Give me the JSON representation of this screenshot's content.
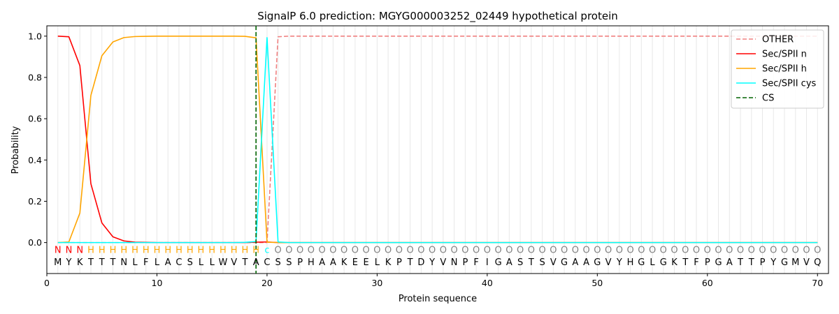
{
  "chart_data": {
    "type": "line",
    "title": "SignalP 6.0 prediction: MGYG000003252_02449 hypothetical protein",
    "xlabel": "Protein sequence",
    "ylabel": "Probability",
    "xlim": [
      0,
      71
    ],
    "ylim": [
      -0.15,
      1.05
    ],
    "x_ticks": [
      0,
      10,
      20,
      30,
      40,
      50,
      60,
      70
    ],
    "y_ticks": [
      0.0,
      0.2,
      0.4,
      0.6,
      0.8,
      1.0
    ],
    "x_tick_labels": [
      "0",
      "10",
      "20",
      "30",
      "40",
      "50",
      "60",
      "70"
    ],
    "y_tick_labels": [
      "0.0",
      "0.2",
      "0.4",
      "0.6",
      "0.8",
      "1.0"
    ],
    "grid": "vertical lines at each residue",
    "legend_position": "top-right",
    "sequence": [
      "M",
      "Y",
      "K",
      "T",
      "T",
      "T",
      "N",
      "L",
      "F",
      "L",
      "A",
      "C",
      "S",
      "L",
      "L",
      "W",
      "V",
      "T",
      "A",
      "C",
      "S",
      "S",
      "P",
      "H",
      "A",
      "A",
      "K",
      "E",
      "E",
      "L",
      "K",
      "P",
      "T",
      "D",
      "Y",
      "V",
      "N",
      "P",
      "F",
      "I",
      "G",
      "A",
      "S",
      "T",
      "S",
      "V",
      "G",
      "A",
      "A",
      "G",
      "V",
      "Y",
      "H",
      "G",
      "L",
      "G",
      "K",
      "T",
      "F",
      "P",
      "G",
      "A",
      "T",
      "T",
      "P",
      "Y",
      "G",
      "M",
      "V",
      "Q"
    ],
    "annotation": [
      "N",
      "N",
      "N",
      "H",
      "H",
      "H",
      "H",
      "H",
      "H",
      "H",
      "H",
      "H",
      "H",
      "H",
      "H",
      "H",
      "H",
      "H",
      "H",
      "c",
      "O",
      "O",
      "O",
      "O",
      "O",
      "O",
      "O",
      "O",
      "O",
      "O",
      "O",
      "O",
      "O",
      "O",
      "O",
      "O",
      "O",
      "O",
      "O",
      "O",
      "O",
      "O",
      "O",
      "O",
      "O",
      "O",
      "O",
      "O",
      "O",
      "O",
      "O",
      "O",
      "O",
      "O",
      "O",
      "O",
      "O",
      "O",
      "O",
      "O",
      "O",
      "O",
      "O",
      "O",
      "O",
      "O",
      "O",
      "O",
      "O",
      "O"
    ],
    "annotation_colors": {
      "N": "#ff0000",
      "H": "#ffa500",
      "c": "#00ffff",
      "O": "#808080"
    },
    "series": [
      {
        "name": "OTHER",
        "color": "#f08080",
        "style": "dashed",
        "x": [
          1,
          2,
          3,
          4,
          5,
          6,
          7,
          8,
          9,
          10,
          11,
          12,
          13,
          14,
          15,
          16,
          17,
          18,
          19,
          20,
          21,
          22,
          23,
          24,
          25,
          26,
          27,
          28,
          29,
          30,
          31,
          32,
          33,
          34,
          35,
          36,
          37,
          38,
          39,
          40,
          41,
          42,
          43,
          44,
          45,
          46,
          47,
          48,
          49,
          50,
          51,
          52,
          53,
          54,
          55,
          56,
          57,
          58,
          59,
          60,
          61,
          62,
          63,
          64,
          65,
          66,
          67,
          68,
          69,
          70
        ],
        "values": [
          0,
          0,
          0,
          0,
          0,
          0,
          0,
          0,
          0,
          0,
          0,
          0,
          0,
          0,
          0,
          0,
          0,
          0,
          0,
          0,
          0.997,
          1,
          1,
          1,
          1,
          1,
          1,
          1,
          1,
          1,
          1,
          1,
          1,
          1,
          1,
          1,
          1,
          1,
          1,
          1,
          1,
          1,
          1,
          1,
          1,
          1,
          1,
          1,
          1,
          1,
          1,
          1,
          1,
          1,
          1,
          1,
          1,
          1,
          1,
          1,
          1,
          1,
          1,
          1,
          1,
          1,
          1,
          1,
          1,
          1
        ]
      },
      {
        "name": "Sec/SPII n",
        "color": "#ff0000",
        "style": "solid",
        "x": [
          1,
          2,
          3,
          4,
          5,
          6,
          7,
          8,
          9,
          10,
          11,
          12,
          13,
          14,
          15,
          16,
          17,
          18,
          19,
          20,
          21,
          22,
          23,
          24,
          25,
          26,
          27,
          28,
          29,
          30,
          31,
          32,
          33,
          34,
          35,
          36,
          37,
          38,
          39,
          40,
          41,
          42,
          43,
          44,
          45,
          46,
          47,
          48,
          49,
          50,
          51,
          52,
          53,
          54,
          55,
          56,
          57,
          58,
          59,
          60,
          61,
          62,
          63,
          64,
          65,
          66,
          67,
          68,
          69,
          70
        ],
        "values": [
          1.0,
          0.997,
          0.857,
          0.285,
          0.095,
          0.028,
          0.008,
          0.002,
          0.001,
          0,
          0,
          0,
          0,
          0,
          0,
          0,
          0,
          0,
          0.002,
          0.003,
          0,
          0,
          0,
          0,
          0,
          0,
          0,
          0,
          0,
          0,
          0,
          0,
          0,
          0,
          0,
          0,
          0,
          0,
          0,
          0,
          0,
          0,
          0,
          0,
          0,
          0,
          0,
          0,
          0,
          0,
          0,
          0,
          0,
          0,
          0,
          0,
          0,
          0,
          0,
          0,
          0,
          0,
          0,
          0,
          0,
          0,
          0,
          0,
          0,
          0
        ]
      },
      {
        "name": "Sec/SPII h",
        "color": "#ffa500",
        "style": "solid",
        "x": [
          1,
          2,
          3,
          4,
          5,
          6,
          7,
          8,
          9,
          10,
          11,
          12,
          13,
          14,
          15,
          16,
          17,
          18,
          19,
          20,
          21,
          22,
          23,
          24,
          25,
          26,
          27,
          28,
          29,
          30,
          31,
          32,
          33,
          34,
          35,
          36,
          37,
          38,
          39,
          40,
          41,
          42,
          43,
          44,
          45,
          46,
          47,
          48,
          49,
          50,
          51,
          52,
          53,
          54,
          55,
          56,
          57,
          58,
          59,
          60,
          61,
          62,
          63,
          64,
          65,
          66,
          67,
          68,
          69,
          70
        ],
        "values": [
          0,
          0.003,
          0.143,
          0.713,
          0.905,
          0.972,
          0.993,
          0.998,
          0.999,
          1,
          1,
          1,
          1,
          1,
          1,
          1,
          1,
          0.999,
          0.992,
          0.002,
          0,
          0,
          0,
          0,
          0,
          0,
          0,
          0,
          0,
          0,
          0,
          0,
          0,
          0,
          0,
          0,
          0,
          0,
          0,
          0,
          0,
          0,
          0,
          0,
          0,
          0,
          0,
          0,
          0,
          0,
          0,
          0,
          0,
          0,
          0,
          0,
          0,
          0,
          0,
          0,
          0,
          0,
          0,
          0,
          0,
          0,
          0,
          0,
          0,
          0
        ]
      },
      {
        "name": "Sec/SPII cys",
        "color": "#00ffff",
        "style": "solid",
        "x": [
          1,
          2,
          3,
          4,
          5,
          6,
          7,
          8,
          9,
          10,
          11,
          12,
          13,
          14,
          15,
          16,
          17,
          18,
          19,
          20,
          21,
          22,
          23,
          24,
          25,
          26,
          27,
          28,
          29,
          30,
          31,
          32,
          33,
          34,
          35,
          36,
          37,
          38,
          39,
          40,
          41,
          42,
          43,
          44,
          45,
          46,
          47,
          48,
          49,
          50,
          51,
          52,
          53,
          54,
          55,
          56,
          57,
          58,
          59,
          60,
          61,
          62,
          63,
          64,
          65,
          66,
          67,
          68,
          69,
          70
        ],
        "values": [
          0,
          0,
          0,
          0,
          0,
          0,
          0,
          0,
          0,
          0,
          0,
          0,
          0,
          0,
          0,
          0,
          0,
          0.001,
          0.005,
          0.993,
          0.003,
          0,
          0,
          0,
          0,
          0,
          0,
          0,
          0,
          0,
          0,
          0,
          0,
          0,
          0,
          0,
          0,
          0,
          0,
          0,
          0,
          0,
          0,
          0,
          0,
          0,
          0,
          0,
          0,
          0,
          0,
          0,
          0,
          0,
          0,
          0,
          0,
          0,
          0,
          0,
          0,
          0,
          0,
          0,
          0,
          0,
          0,
          0,
          0,
          0
        ]
      }
    ],
    "cs": {
      "name": "CS",
      "x": 19,
      "color": "#006400",
      "style": "dashed"
    }
  }
}
